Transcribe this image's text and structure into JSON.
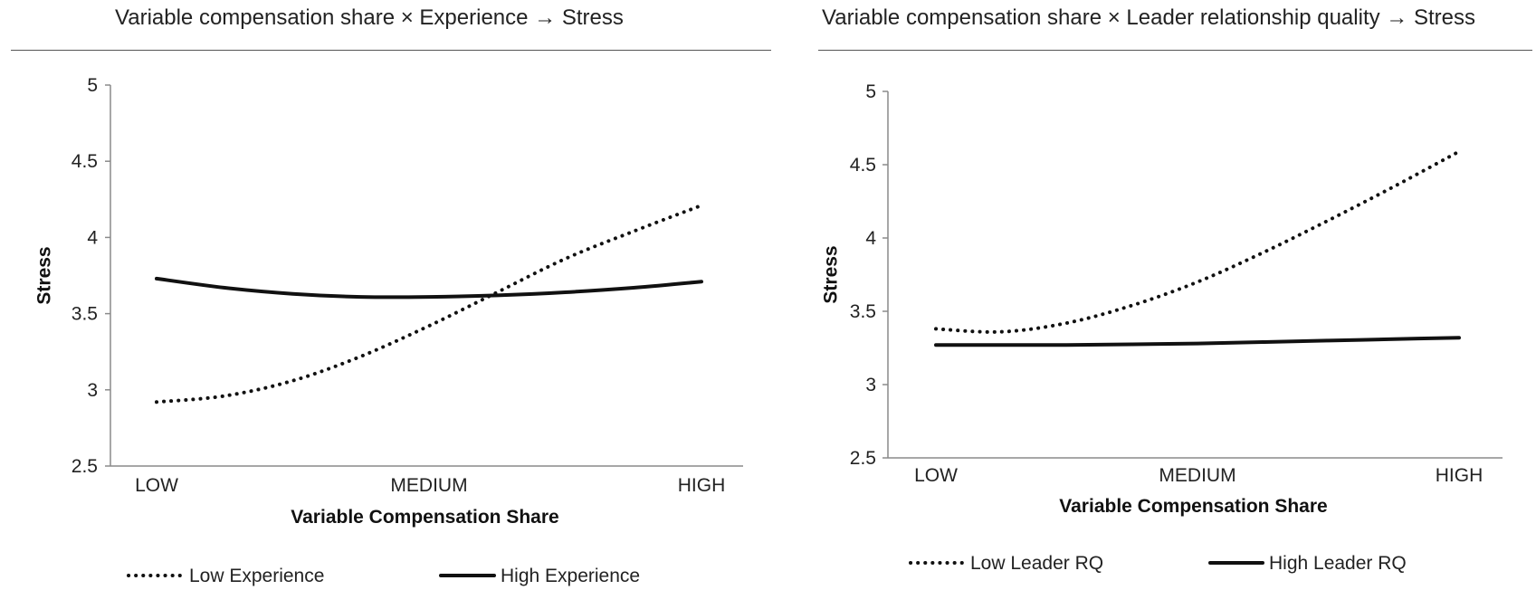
{
  "chart_data": [
    {
      "type": "line",
      "title": "Variable compensation share × Experience → Stress",
      "xlabel": "Variable Compensation Share",
      "ylabel": "Stress",
      "categories": [
        "LOW",
        "MEDIUM",
        "HIGH"
      ],
      "yticks": [
        "2.5",
        "3",
        "3.5",
        "4",
        "4.5",
        "5"
      ],
      "ylim": [
        2.5,
        5
      ],
      "grid": false,
      "legend_position": "bottom",
      "series": [
        {
          "name": "Low Experience",
          "style": "dotted",
          "color": "#111111",
          "x": [
            0,
            0.25,
            0.5,
            0.75,
            1.0,
            1.25,
            1.5,
            1.75,
            2.0
          ],
          "values": [
            2.92,
            2.96,
            3.06,
            3.22,
            3.42,
            3.64,
            3.86,
            4.04,
            4.21
          ]
        },
        {
          "name": "High Experience",
          "style": "solid",
          "color": "#111111",
          "x": [
            0,
            0.25,
            0.5,
            0.75,
            1.0,
            1.25,
            1.5,
            1.75,
            2.0
          ],
          "values": [
            3.73,
            3.67,
            3.63,
            3.61,
            3.61,
            3.62,
            3.64,
            3.67,
            3.71
          ]
        }
      ]
    },
    {
      "type": "line",
      "title": "Variable compensation share × Leader relationship quality → Stress",
      "xlabel": "Variable Compensation Share",
      "ylabel": "Stress",
      "categories": [
        "LOW",
        "MEDIUM",
        "HIGH"
      ],
      "yticks": [
        "2.5",
        "3",
        "3.5",
        "4",
        "4.5",
        "5"
      ],
      "ylim": [
        2.5,
        5
      ],
      "grid": false,
      "legend_position": "bottom",
      "series": [
        {
          "name": "Low Leader RQ",
          "style": "dotted",
          "color": "#111111",
          "x": [
            0,
            0.25,
            0.5,
            0.75,
            1.0,
            1.25,
            1.5,
            1.75,
            2.0
          ],
          "values": [
            3.38,
            3.36,
            3.42,
            3.54,
            3.7,
            3.9,
            4.12,
            4.35,
            4.59
          ]
        },
        {
          "name": "High Leader RQ",
          "style": "solid",
          "color": "#111111",
          "x": [
            0,
            0.25,
            0.5,
            0.75,
            1.0,
            1.25,
            1.5,
            1.75,
            2.0
          ],
          "values": [
            3.27,
            3.27,
            3.27,
            3.275,
            3.28,
            3.29,
            3.3,
            3.31,
            3.32
          ]
        }
      ]
    }
  ]
}
